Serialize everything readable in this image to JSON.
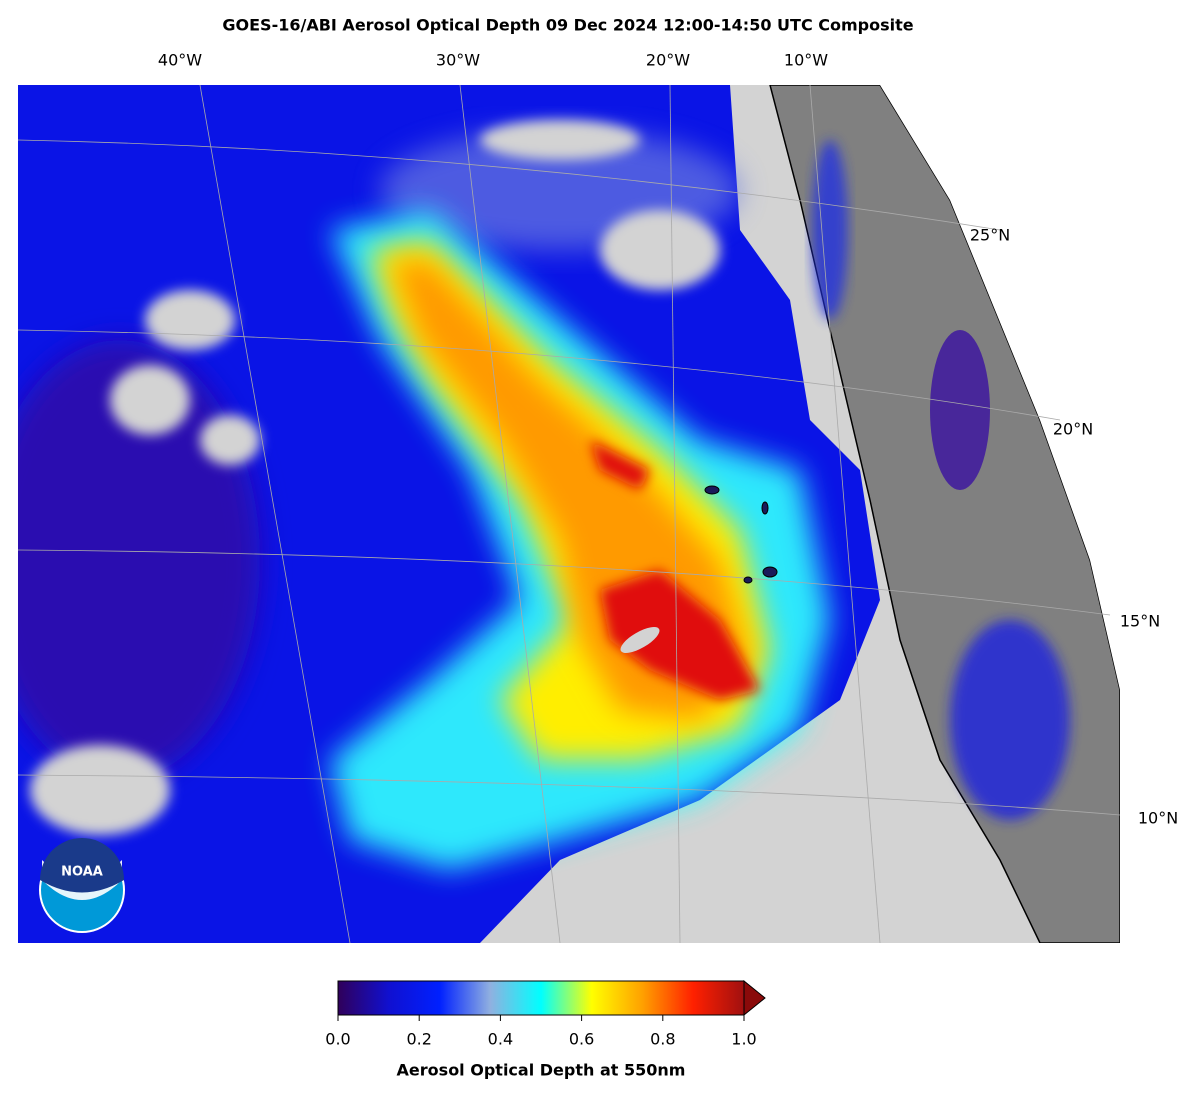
{
  "title": "GOES-16/ABI Aerosol Optical Depth  09 Dec 2024 12:00-14:50 UTC Composite",
  "map": {
    "lon_labels": [
      "40°W",
      "30°W",
      "20°W",
      "10°W"
    ],
    "lat_labels": [
      "25°N",
      "20°N",
      "15°N",
      "10°N"
    ],
    "logo": "NOAA"
  },
  "colorbar": {
    "label": "Aerosol Optical Depth at 550nm",
    "lim": [
      0,
      1
    ],
    "ticks": [
      {
        "value": 0,
        "label": "0.0"
      },
      0.2,
      0.4,
      0.6,
      0.8,
      {
        "value": 1,
        "label": "1.0"
      }
    ],
    "colors": [
      "#30005a",
      "#1010d0",
      "#0020ff",
      "#90b0e0",
      "#00ffff",
      "#ffff00",
      "#ffa000",
      "#ff2000",
      "#a01010"
    ]
  }
}
